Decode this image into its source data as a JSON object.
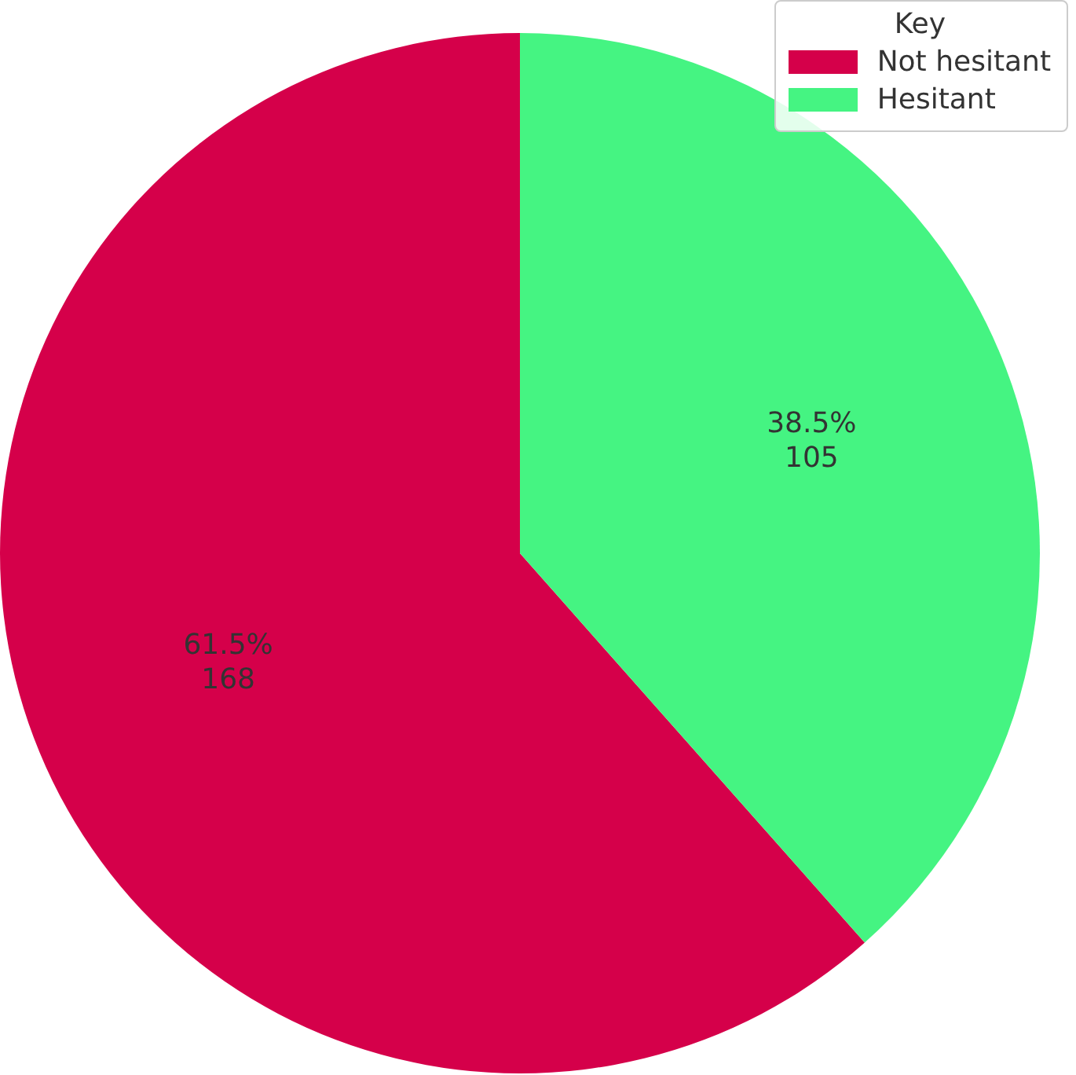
{
  "chart_data": {
    "type": "pie",
    "categories": [
      "Not hesitant",
      "Hesitant"
    ],
    "values": [
      168,
      105
    ],
    "colors": [
      "#d5004a",
      "#45f482"
    ],
    "value_labels": [
      "61.5%\n168",
      "38.5%\n105"
    ],
    "legend_title": "Key",
    "legend": "top right"
  }
}
